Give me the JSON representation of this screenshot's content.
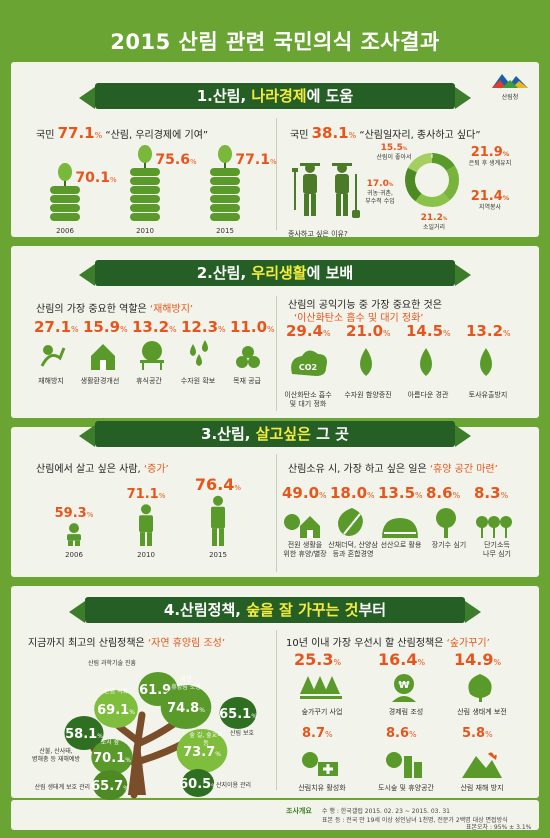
{
  "page_title": "2015 산림 관련 국민의식 조사결과",
  "logo_text": "산림청",
  "sections": [
    {
      "num": "1.산림, ",
      "hl": "나라경제",
      "rest": "에 도움"
    },
    {
      "num": "2.산림, ",
      "hl": "우리생활",
      "rest": "에 보배"
    },
    {
      "num": "3.산림, ",
      "hl": "살고싶은",
      "rest": " 그 곳"
    },
    {
      "num": "4.산림정책, ",
      "hl": "숲을 잘 가꾸는 것",
      "rest": "부터"
    }
  ],
  "s1": {
    "left_prefix": "국민 ",
    "left_big": "77.1",
    "left_quote": " “산림, 우리경제에 기여”",
    "right_prefix": "국민 ",
    "right_big": "38.1",
    "right_quote": " “산림일자리, 종사하고 싶다”",
    "right_caption": "종사하고 싶은 이유?"
  },
  "s2": {
    "left_title": "산림의 가장 중요한 역할은 ",
    "left_hl": "‘재해방지’",
    "right_title": "산림의 공익기능 중 가장 중요한 것은",
    "right_hl": "‘이산화탄소 흡수 및 대기 정화’"
  },
  "s3": {
    "left_title": "산림에서 살고 싶은 사람, ",
    "left_hl": "‘증가’",
    "right_title": "산림소유 시, 가장 하고 싶은 일은 ",
    "right_hl": "‘휴양 공간 마련’"
  },
  "s4": {
    "left_title": "지금까지 최고의 산림정책은 ",
    "left_hl": "‘자연 휴양림 조성’",
    "right_title": "10년 이내 가장 우선시 할 산림정책은 ",
    "right_hl": "‘숲가꾸기’"
  },
  "footer": {
    "label": "조사개요",
    "line1": "수    행 : 한국갤럽 2015. 02. 23 ~ 2015. 03. 31",
    "line2": "표본 등 : 전국 만 19세 이상 성인남녀 1천명, 전문가 2백명 대상 면접방식",
    "line3": "표본오차 : 95% ± 3.1%"
  },
  "colors": {
    "bg": "#6aa534",
    "banner": "#255f25",
    "accent": "#e8551c",
    "icon": "#5a9a2a"
  },
  "chart_data": [
    {
      "type": "bar",
      "title": "국민 77.1% “산림, 우리경제에 기여”",
      "categories": [
        "2006",
        "2010",
        "2015"
      ],
      "values": [
        70.1,
        75.6,
        77.1
      ],
      "unit": "%"
    },
    {
      "type": "pie",
      "title": "종사하고 싶은 이유?",
      "labels": [
        "산림이 좋아서",
        "은퇴 후 생계유지",
        "지역봉사",
        "소일거리",
        "귀농·귀촌, 부수적 수입"
      ],
      "values": [
        15.5,
        21.9,
        21.4,
        21.2,
        17.0
      ],
      "unit": "%"
    },
    {
      "type": "bar",
      "title": "산림의 가장 중요한 역할은 ‘재해방지’",
      "categories": [
        "재해방지",
        "생활환경개선",
        "휴식공간",
        "수자원 확보",
        "목재 공급"
      ],
      "values": [
        27.1,
        15.9,
        13.2,
        12.3,
        11.0
      ],
      "unit": "%"
    },
    {
      "type": "bar",
      "title": "산림의 공익기능 중 가장 중요한 것은 ‘이산화탄소 흡수 및 대기 정화’",
      "categories": [
        "이산화탄소 흡수 및 대기 정화",
        "수자원 함양증진",
        "아름다운 경관",
        "토사유출방지"
      ],
      "values": [
        29.4,
        21.0,
        14.5,
        13.2
      ],
      "unit": "%"
    },
    {
      "type": "bar",
      "title": "산림에서 살고 싶은 사람, ‘증가’",
      "categories": [
        "2006",
        "2010",
        "2015"
      ],
      "values": [
        59.3,
        71.1,
        76.4
      ],
      "unit": "%"
    },
    {
      "type": "bar",
      "title": "산림소유 시, 가장 하고 싶은 일은 ‘휴양 공간 마련’",
      "categories": [
        "전원 생활을 위한 휴양/별장",
        "산채더덕, 산양삼 등과 혼합경영",
        "선산으로 활용",
        "장기수 심기",
        "단기소득 나무 심기"
      ],
      "values": [
        49.0,
        18.0,
        13.5,
        8.6,
        8.3
      ],
      "unit": "%"
    },
    {
      "type": "bar",
      "title": "지금까지 최고의 산림정책은 ‘자연 휴양림 조성’",
      "categories": [
        "산림 과학기술 진흥",
        "산림 녹화",
        "자연 휴양림 조성",
        "산림 보호",
        "산불, 산사태, 병해충 등 재해예방",
        "숲 길, 숲교육 등",
        "도시 숲",
        "산지이용 관리",
        "산림 생태계 보호 관리"
      ],
      "values": [
        61.9,
        69.1,
        74.8,
        65.1,
        58.1,
        73.7,
        70.1,
        60.5,
        65.7
      ],
      "unit": "%"
    },
    {
      "type": "bar",
      "title": "10년 이내 가장 우선시 할 산림정책은 ‘숲가꾸기’",
      "categories": [
        "숲가꾸기 사업",
        "경제림 조성",
        "산림 생태계 보전",
        "산림치유 활성화",
        "도시숲 및 휴양공간",
        "산림 재해 방지"
      ],
      "values": [
        25.3,
        16.4,
        14.9,
        8.7,
        8.6,
        5.8
      ],
      "unit": "%"
    }
  ]
}
